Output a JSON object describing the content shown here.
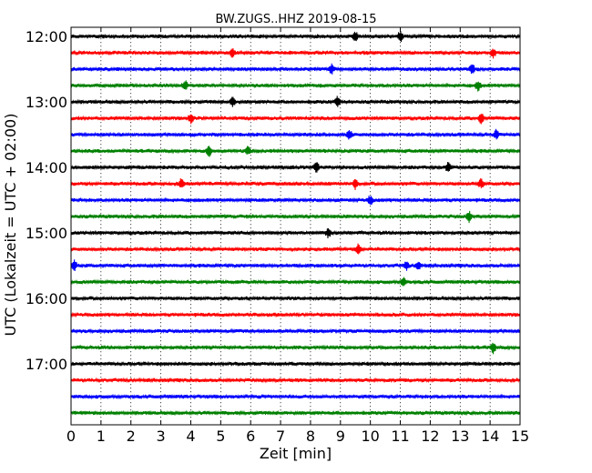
{
  "chart_data": {
    "type": "line",
    "title": "BW.ZUGS..HHZ 2019-08-15",
    "xlabel": "Zeit  [min]",
    "ylabel": "UTC (Lokalzeit = UTC + 02:00)",
    "xlim": [
      0,
      15
    ],
    "xticks": [
      "0",
      "1",
      "2",
      "3",
      "4",
      "5",
      "6",
      "7",
      "8",
      "9",
      "10",
      "11",
      "12",
      "13",
      "14",
      "15"
    ],
    "ytick_labels": [
      "12:00",
      "13:00",
      "14:00",
      "15:00",
      "16:00",
      "17:00"
    ],
    "grid": "vertical dotted",
    "trace_colors": [
      "#000000",
      "#ff0000",
      "#0000ff",
      "#008000"
    ],
    "traces": [
      {
        "start": "12:00",
        "color": "#000000",
        "events_min": [
          9.5,
          11.0
        ]
      },
      {
        "start": "12:15",
        "color": "#ff0000",
        "events_min": [
          5.4,
          14.1
        ]
      },
      {
        "start": "12:30",
        "color": "#0000ff",
        "events_min": [
          8.7,
          13.4
        ]
      },
      {
        "start": "12:45",
        "color": "#008000",
        "events_min": [
          3.8,
          13.6
        ]
      },
      {
        "start": "13:00",
        "color": "#000000",
        "events_min": [
          5.4,
          8.9
        ]
      },
      {
        "start": "13:15",
        "color": "#ff0000",
        "events_min": [
          4.0,
          13.7
        ]
      },
      {
        "start": "13:30",
        "color": "#0000ff",
        "events_min": [
          9.3,
          14.2
        ]
      },
      {
        "start": "13:45",
        "color": "#008000",
        "events_min": [
          4.6,
          5.9
        ]
      },
      {
        "start": "14:00",
        "color": "#000000",
        "events_min": [
          8.2,
          12.6
        ]
      },
      {
        "start": "14:15",
        "color": "#ff0000",
        "events_min": [
          3.7,
          9.5,
          13.7
        ]
      },
      {
        "start": "14:30",
        "color": "#0000ff",
        "events_min": [
          10.0
        ]
      },
      {
        "start": "14:45",
        "color": "#008000",
        "events_min": [
          13.3
        ]
      },
      {
        "start": "15:00",
        "color": "#000000",
        "events_min": [
          8.6
        ]
      },
      {
        "start": "15:15",
        "color": "#ff0000",
        "events_min": [
          9.6
        ]
      },
      {
        "start": "15:30",
        "color": "#0000ff",
        "events_min": [
          0.1,
          11.2,
          11.6
        ]
      },
      {
        "start": "15:45",
        "color": "#008000",
        "events_min": [
          11.1
        ]
      },
      {
        "start": "16:00",
        "color": "#000000",
        "events_min": []
      },
      {
        "start": "16:15",
        "color": "#ff0000",
        "events_min": []
      },
      {
        "start": "16:30",
        "color": "#0000ff",
        "events_min": []
      },
      {
        "start": "16:45",
        "color": "#008000",
        "events_min": [
          14.1
        ]
      },
      {
        "start": "17:00",
        "color": "#000000",
        "events_min": []
      },
      {
        "start": "17:15",
        "color": "#ff0000",
        "events_min": []
      },
      {
        "start": "17:30",
        "color": "#0000ff",
        "events_min": []
      },
      {
        "start": "17:45",
        "color": "#008000",
        "events_min": []
      }
    ]
  }
}
